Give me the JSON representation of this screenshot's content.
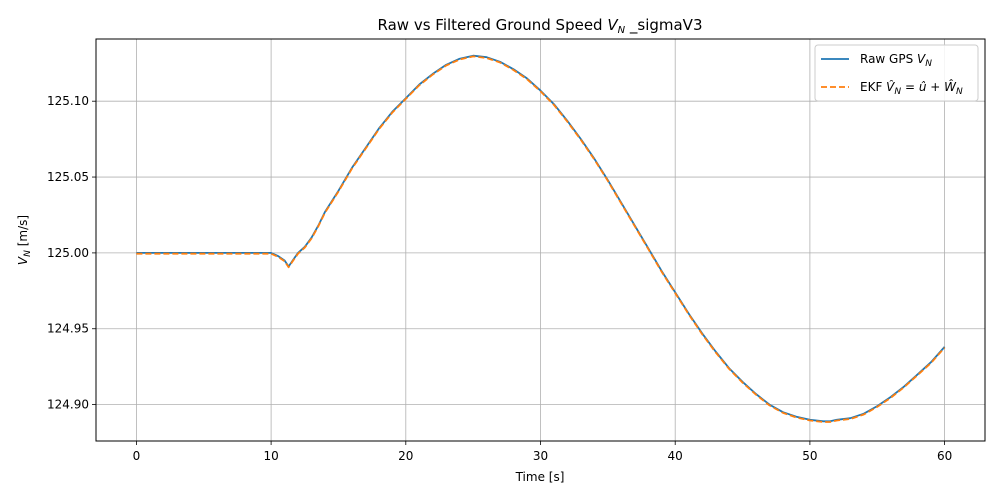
{
  "chart_data": {
    "type": "line",
    "title": "Raw vs Filtered Ground Speed V_N _sigmaV3",
    "xlabel": "Time [s]",
    "ylabel": "V_N [m/s]",
    "xlim": [
      -3,
      63
    ],
    "ylim": [
      124.876,
      125.141
    ],
    "grid": true,
    "legend_position": "top-right",
    "xticks": [
      0,
      10,
      20,
      30,
      40,
      50,
      60
    ],
    "yticks": [
      124.9,
      124.95,
      125.0,
      125.05,
      125.1
    ],
    "xtick_labels": [
      "0",
      "10",
      "20",
      "30",
      "40",
      "50",
      "60"
    ],
    "ytick_labels": [
      "124.90",
      "124.95",
      "125.00",
      "125.05",
      "125.10"
    ],
    "series": [
      {
        "name": "Raw GPS V_N",
        "color": "#1f77b4",
        "style": "solid",
        "x": [
          0,
          5,
          10,
          10.5,
          11,
          11.3,
          11.6,
          12,
          12.5,
          13,
          13.5,
          14,
          15,
          16,
          17,
          18,
          19,
          20,
          21,
          22,
          23,
          24,
          25,
          26,
          27,
          28,
          29,
          30,
          31,
          32,
          33,
          34,
          35,
          36,
          37,
          38,
          39,
          40,
          41,
          42,
          43,
          44,
          45,
          46,
          47,
          48,
          49,
          50,
          51,
          51.5,
          52,
          53,
          54,
          55,
          56,
          57,
          58,
          59,
          60
        ],
        "y": [
          125.0,
          125.0,
          125.0,
          124.998,
          124.995,
          124.991,
          124.995,
          125.0,
          125.004,
          125.01,
          125.018,
          125.027,
          125.041,
          125.056,
          125.069,
          125.082,
          125.093,
          125.102,
          125.111,
          125.118,
          125.124,
          125.128,
          125.13,
          125.129,
          125.126,
          125.121,
          125.115,
          125.107,
          125.098,
          125.087,
          125.075,
          125.062,
          125.048,
          125.033,
          125.018,
          125.003,
          124.988,
          124.974,
          124.96,
          124.947,
          124.935,
          124.924,
          124.915,
          124.907,
          124.9,
          124.895,
          124.892,
          124.89,
          124.889,
          124.889,
          124.89,
          124.891,
          124.894,
          124.899,
          124.905,
          124.912,
          124.92,
          124.928,
          124.938
        ]
      },
      {
        "name": "EKF V̂_N = û + Ŵ_N",
        "color": "#ff7f0e",
        "style": "dashed",
        "x": [
          0,
          5,
          10,
          10.5,
          11,
          11.3,
          11.6,
          12,
          12.5,
          13,
          13.5,
          14,
          15,
          16,
          17,
          18,
          19,
          20,
          21,
          22,
          23,
          24,
          25,
          26,
          27,
          28,
          29,
          30,
          31,
          32,
          33,
          34,
          35,
          36,
          37,
          38,
          39,
          40,
          41,
          42,
          43,
          44,
          45,
          46,
          47,
          48,
          49,
          50,
          51,
          51.5,
          52,
          53,
          54,
          55,
          56,
          57,
          58,
          59,
          60
        ],
        "y": [
          124.9995,
          124.9995,
          124.9995,
          124.9975,
          124.9945,
          124.9905,
          124.9945,
          124.9995,
          125.0035,
          125.0095,
          125.0175,
          125.0265,
          125.0405,
          125.0555,
          125.0685,
          125.0815,
          125.0925,
          125.1015,
          125.1105,
          125.1175,
          125.1235,
          125.1275,
          125.1295,
          125.1285,
          125.1255,
          125.1205,
          125.1145,
          125.1065,
          125.0975,
          125.0865,
          125.0745,
          125.0615,
          125.0475,
          125.0325,
          125.0175,
          125.0025,
          124.9875,
          124.9735,
          124.9595,
          124.9465,
          124.9345,
          124.9235,
          124.9145,
          124.9065,
          124.8995,
          124.8945,
          124.8915,
          124.8895,
          124.8885,
          124.8885,
          124.8895,
          124.8905,
          124.8935,
          124.8985,
          124.9045,
          124.9115,
          124.9195,
          124.9275,
          124.9375
        ]
      }
    ]
  }
}
